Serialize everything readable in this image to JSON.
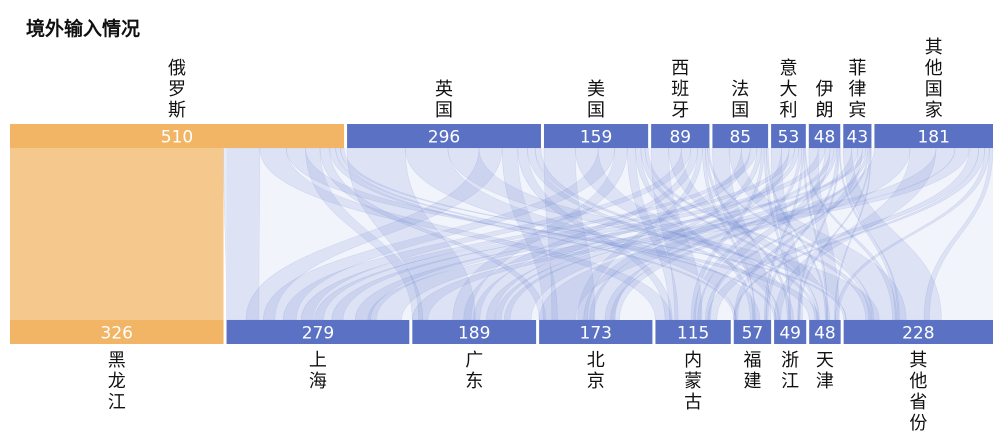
{
  "chart_data": {
    "type": "sankey",
    "title": "境外输入情况",
    "colors": {
      "highlight": "#f2b565",
      "highlight_flow": "#f5c98d",
      "bar": "#5b72c4",
      "flow": "#6f86d2",
      "bar_text": "#ffffff",
      "label_text": "#111111"
    },
    "sources": [
      {
        "name": "俄罗斯",
        "value": 510,
        "highlight": true
      },
      {
        "name": "英国",
        "value": 296
      },
      {
        "name": "美国",
        "value": 159
      },
      {
        "name": "西班牙",
        "value": 89
      },
      {
        "name": "法国",
        "value": 85
      },
      {
        "name": "意大利",
        "value": 53
      },
      {
        "name": "伊朗",
        "value": 48
      },
      {
        "name": "菲律宾",
        "value": 43
      },
      {
        "name": "其他国家",
        "value": 181
      }
    ],
    "targets": [
      {
        "name": "黑龙江",
        "value": 326,
        "highlight": true
      },
      {
        "name": "上海",
        "value": 279
      },
      {
        "name": "广东",
        "value": 189
      },
      {
        "name": "北京",
        "value": 173
      },
      {
        "name": "内蒙古",
        "value": 115
      },
      {
        "name": "福建",
        "value": 57
      },
      {
        "name": "浙江",
        "value": 49
      },
      {
        "name": "天津",
        "value": 48
      },
      {
        "name": "其他省份",
        "value": 228
      }
    ]
  }
}
